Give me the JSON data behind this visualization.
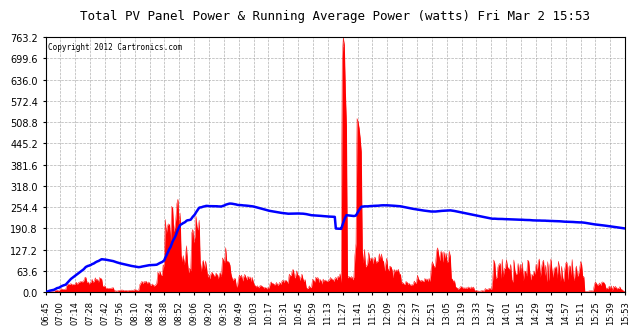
{
  "title": "Total PV Panel Power & Running Average Power (watts) Fri Mar 2 15:53",
  "copyright": "Copyright 2012 Cartronics.com",
  "background_color": "#ffffff",
  "plot_bg_color": "#ffffff",
  "grid_color": "#aaaaaa",
  "red_color": "#ff0000",
  "blue_color": "#0000ff",
  "y_max": 763.2,
  "y_min": 0.0,
  "y_tick_step": 63.6,
  "x_tick_labels": [
    "06:45",
    "07:00",
    "07:14",
    "07:28",
    "07:42",
    "07:56",
    "08:10",
    "08:24",
    "08:38",
    "08:52",
    "09:06",
    "09:20",
    "09:35",
    "09:49",
    "10:03",
    "10:17",
    "10:31",
    "10:45",
    "10:59",
    "11:13",
    "11:27",
    "11:41",
    "11:55",
    "12:09",
    "12:23",
    "12:37",
    "12:51",
    "13:05",
    "13:19",
    "13:33",
    "13:47",
    "14:01",
    "14:15",
    "14:29",
    "14:43",
    "14:57",
    "15:11",
    "15:25",
    "15:39",
    "15:53"
  ]
}
